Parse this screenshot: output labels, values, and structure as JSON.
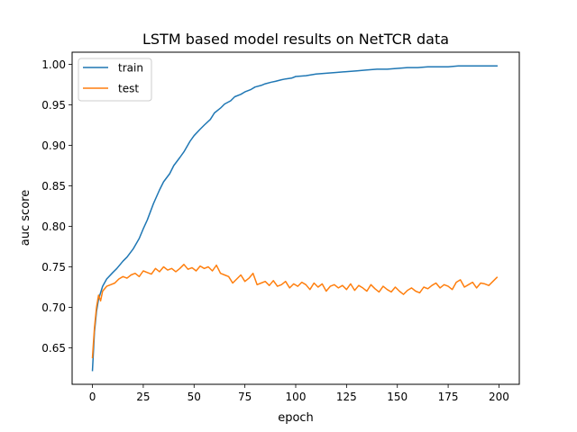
{
  "chart_data": {
    "type": "line",
    "title": "LSTM based model results on NetTCR data",
    "xlabel": "epoch",
    "ylabel": "auc score",
    "xlim": [
      -10,
      210
    ],
    "ylim": [
      0.605,
      1.015
    ],
    "xticks": [
      0,
      25,
      50,
      75,
      100,
      125,
      150,
      175,
      200
    ],
    "yticks": [
      0.65,
      0.7,
      0.75,
      0.8,
      0.85,
      0.9,
      0.95,
      1.0
    ],
    "xtick_labels": [
      "0",
      "25",
      "50",
      "75",
      "100",
      "125",
      "150",
      "175",
      "200"
    ],
    "ytick_labels": [
      "0.65",
      "0.70",
      "0.75",
      "0.80",
      "0.85",
      "0.90",
      "0.95",
      "1.00"
    ],
    "grid": false,
    "legend_position": "top-left",
    "series": [
      {
        "name": "train",
        "color": "#1f77b4",
        "x": [
          0,
          1,
          2,
          3,
          5,
          7,
          10,
          12,
          15,
          17,
          20,
          23,
          25,
          27,
          30,
          33,
          35,
          38,
          40,
          43,
          45,
          48,
          50,
          53,
          55,
          58,
          60,
          63,
          65,
          68,
          70,
          73,
          75,
          78,
          80,
          83,
          85,
          88,
          90,
          93,
          95,
          98,
          100,
          105,
          110,
          115,
          120,
          125,
          130,
          135,
          140,
          145,
          150,
          155,
          160,
          165,
          170,
          175,
          180,
          185,
          190,
          195,
          199
        ],
        "values": [
          0.622,
          0.67,
          0.695,
          0.71,
          0.726,
          0.735,
          0.743,
          0.748,
          0.757,
          0.762,
          0.772,
          0.785,
          0.797,
          0.808,
          0.828,
          0.845,
          0.855,
          0.865,
          0.875,
          0.885,
          0.892,
          0.905,
          0.912,
          0.92,
          0.925,
          0.932,
          0.94,
          0.946,
          0.951,
          0.955,
          0.96,
          0.963,
          0.966,
          0.969,
          0.972,
          0.974,
          0.976,
          0.978,
          0.979,
          0.981,
          0.982,
          0.983,
          0.985,
          0.986,
          0.988,
          0.989,
          0.99,
          0.991,
          0.992,
          0.993,
          0.994,
          0.994,
          0.995,
          0.996,
          0.996,
          0.997,
          0.997,
          0.997,
          0.998,
          0.998,
          0.998,
          0.998,
          0.998
        ]
      },
      {
        "name": "test",
        "color": "#ff7f0e",
        "x": [
          0,
          1,
          2,
          3,
          4,
          5,
          7,
          9,
          11,
          13,
          15,
          17,
          19,
          21,
          23,
          25,
          27,
          29,
          31,
          33,
          35,
          37,
          39,
          41,
          43,
          45,
          47,
          49,
          51,
          53,
          55,
          57,
          59,
          61,
          63,
          65,
          67,
          69,
          71,
          73,
          75,
          77,
          79,
          81,
          83,
          85,
          87,
          89,
          91,
          93,
          95,
          97,
          99,
          101,
          103,
          105,
          107,
          109,
          111,
          113,
          115,
          117,
          119,
          121,
          123,
          125,
          127,
          129,
          131,
          133,
          135,
          137,
          139,
          141,
          143,
          145,
          147,
          149,
          151,
          153,
          155,
          157,
          159,
          161,
          163,
          165,
          167,
          169,
          171,
          173,
          175,
          177,
          179,
          181,
          183,
          185,
          187,
          189,
          191,
          193,
          195,
          197,
          199
        ],
        "values": [
          0.638,
          0.675,
          0.7,
          0.715,
          0.708,
          0.72,
          0.726,
          0.728,
          0.73,
          0.735,
          0.738,
          0.736,
          0.74,
          0.742,
          0.738,
          0.745,
          0.743,
          0.741,
          0.748,
          0.744,
          0.75,
          0.746,
          0.748,
          0.744,
          0.748,
          0.753,
          0.747,
          0.749,
          0.745,
          0.751,
          0.748,
          0.75,
          0.745,
          0.752,
          0.742,
          0.74,
          0.738,
          0.73,
          0.735,
          0.74,
          0.732,
          0.736,
          0.742,
          0.728,
          0.73,
          0.732,
          0.727,
          0.733,
          0.726,
          0.728,
          0.732,
          0.724,
          0.729,
          0.726,
          0.731,
          0.728,
          0.722,
          0.73,
          0.725,
          0.729,
          0.72,
          0.726,
          0.728,
          0.724,
          0.727,
          0.722,
          0.729,
          0.721,
          0.727,
          0.724,
          0.72,
          0.728,
          0.723,
          0.719,
          0.726,
          0.722,
          0.719,
          0.725,
          0.72,
          0.716,
          0.721,
          0.724,
          0.72,
          0.718,
          0.725,
          0.723,
          0.727,
          0.73,
          0.724,
          0.728,
          0.726,
          0.722,
          0.731,
          0.734,
          0.725,
          0.728,
          0.731,
          0.724,
          0.73,
          0.729,
          0.727,
          0.732,
          0.737
        ]
      }
    ]
  }
}
